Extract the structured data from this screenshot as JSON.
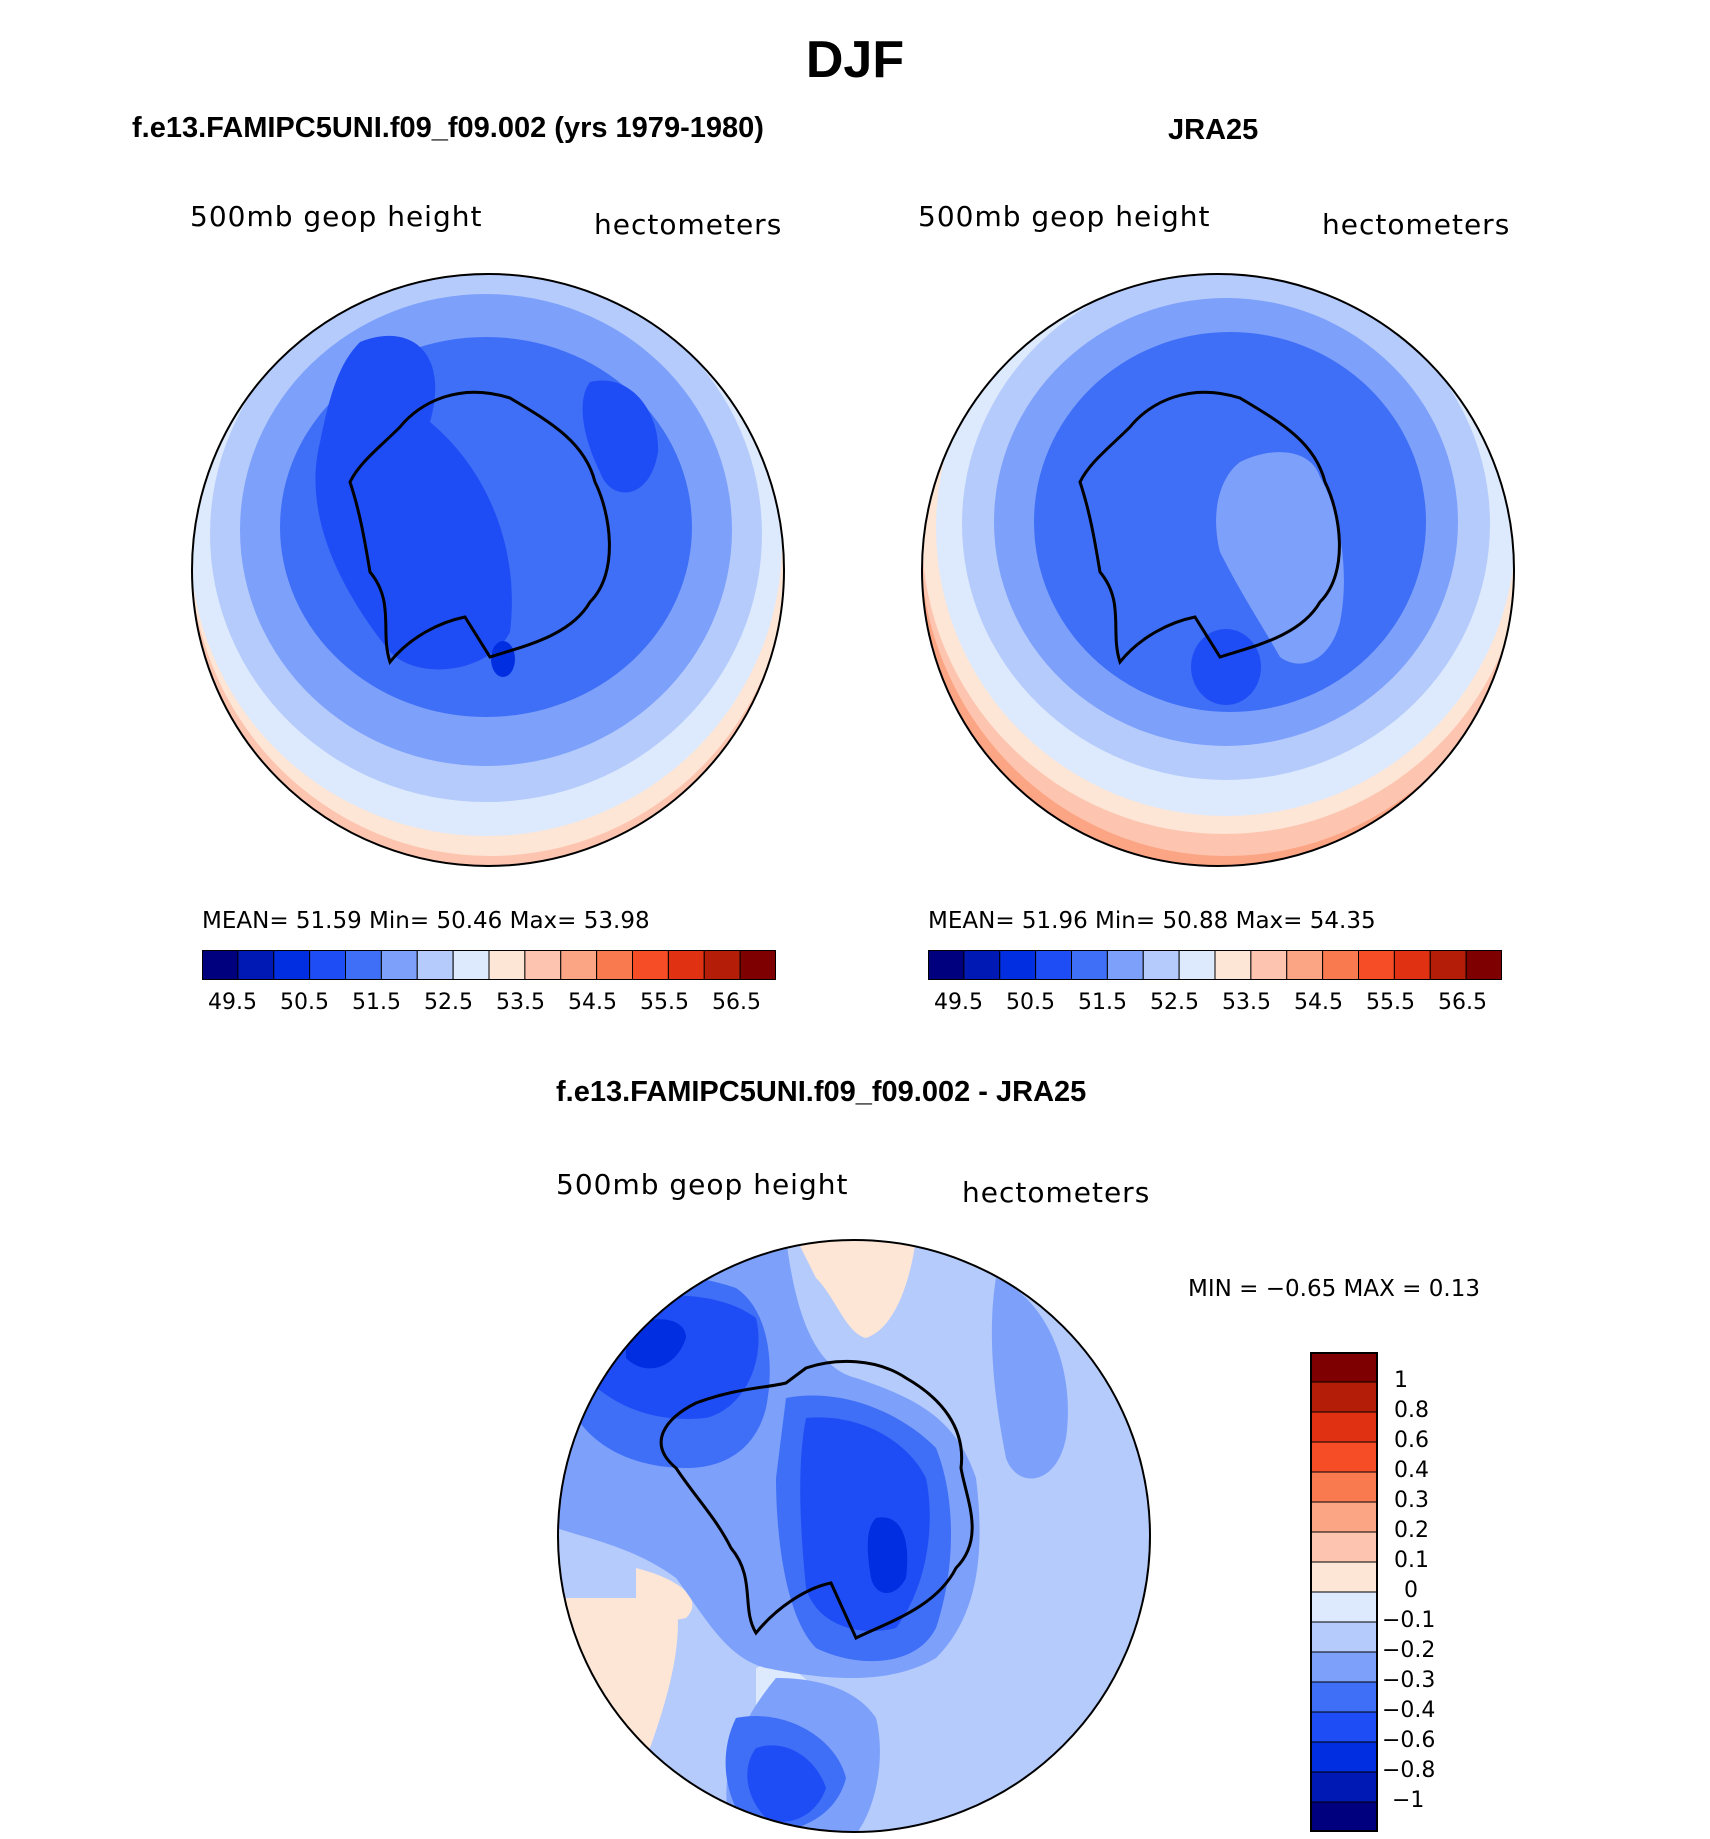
{
  "figure": {
    "season_title": "DJF"
  },
  "panels": [
    {
      "title": "f.e13.FAMIPC5UNI.f09_f09.002 (yrs 1979-1980)",
      "variable": "500mb  geop  height",
      "units": "hectometers",
      "stats_text": "MEAN=   51.59   Min=   50.46   Max=   53.98",
      "colorbar_labels": [
        "49.5",
        "50.5",
        "51.5",
        "52.5",
        "53.5",
        "54.5",
        "55.5",
        "56.5"
      ]
    },
    {
      "title": "JRA25",
      "variable": "500mb  geop  height",
      "units": "hectometers",
      "stats_text": "MEAN=   51.96   Min=   50.88   Max=   54.35",
      "colorbar_labels": [
        "49.5",
        "50.5",
        "51.5",
        "52.5",
        "53.5",
        "54.5",
        "55.5",
        "56.5"
      ]
    },
    {
      "title": "f.e13.FAMIPC5UNI.f09_f09.002 - JRA25",
      "variable": "500mb  geop  height",
      "units": "hectometers",
      "stats_text": "MIN =   −0.65 MAX =    0.13",
      "colorbar_labels": [
        "1",
        "0.8",
        "0.6",
        "0.4",
        "0.3",
        "0.2",
        "0.1",
        "0",
        "−0.1",
        "−0.2",
        "−0.3",
        "−0.4",
        "−0.6",
        "−0.8",
        "−1"
      ]
    }
  ],
  "colors": {
    "mean_scale": [
      "#00007f",
      "#0018b4",
      "#002ee0",
      "#1f4df5",
      "#3f6ff7",
      "#7da0fb",
      "#b5cbfc",
      "#dde9fc",
      "#fde6d6",
      "#fdc5b0",
      "#fca584",
      "#fa7a4f",
      "#f74d26",
      "#e03113",
      "#b41e08",
      "#7e0000"
    ],
    "diff_scale": [
      "#7e0000",
      "#b41e08",
      "#e03113",
      "#f74d26",
      "#fa7a4f",
      "#fca584",
      "#fdc5b0",
      "#fde6d6",
      "#dde9fc",
      "#b5cbfc",
      "#7da0fb",
      "#3f6ff7",
      "#1f4df5",
      "#002ee0",
      "#0018b4",
      "#00007f"
    ]
  }
}
